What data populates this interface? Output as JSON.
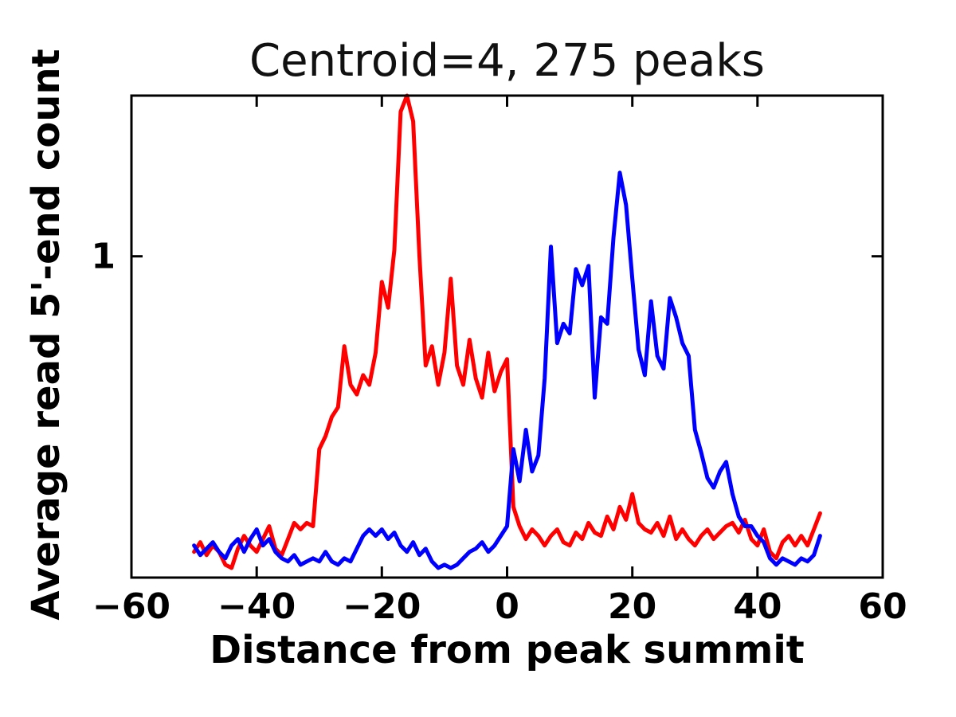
{
  "chart_data": {
    "type": "line",
    "title": "Centroid=4, 275 peaks",
    "xlabel": "Distance from peak summit",
    "ylabel": "Average read 5'-end count",
    "xlim": [
      -60,
      60
    ],
    "ylim": [
      0,
      1.5
    ],
    "xticks": [
      -60,
      -40,
      -20,
      0,
      20,
      40,
      60
    ],
    "yticks": [
      1
    ],
    "grid": false,
    "legend_position": "none",
    "x": [
      -50,
      -49,
      -48,
      -47,
      -46,
      -45,
      -44,
      -43,
      -42,
      -41,
      -40,
      -39,
      -38,
      -37,
      -36,
      -35,
      -34,
      -33,
      -32,
      -31,
      -30,
      -29,
      -28,
      -27,
      -26,
      -25,
      -24,
      -23,
      -22,
      -21,
      -20,
      -19,
      -18,
      -17,
      -16,
      -15,
      -14,
      -13,
      -12,
      -11,
      -10,
      -9,
      -8,
      -7,
      -6,
      -5,
      -4,
      -3,
      -2,
      -1,
      0,
      1,
      2,
      3,
      4,
      5,
      6,
      7,
      8,
      9,
      10,
      11,
      12,
      13,
      14,
      15,
      16,
      17,
      18,
      19,
      20,
      21,
      22,
      23,
      24,
      25,
      26,
      27,
      28,
      29,
      30,
      31,
      32,
      33,
      34,
      35,
      36,
      37,
      38,
      39,
      40,
      41,
      42,
      43,
      44,
      45,
      46,
      47,
      48,
      49,
      50
    ],
    "series": [
      {
        "name": "red",
        "color": "#ff0000",
        "values": [
          0.08,
          0.11,
          0.07,
          0.1,
          0.08,
          0.04,
          0.03,
          0.09,
          0.13,
          0.1,
          0.08,
          0.12,
          0.16,
          0.09,
          0.07,
          0.12,
          0.17,
          0.15,
          0.17,
          0.16,
          0.4,
          0.44,
          0.5,
          0.53,
          0.72,
          0.6,
          0.57,
          0.63,
          0.6,
          0.7,
          0.92,
          0.84,
          1.02,
          1.45,
          1.5,
          1.42,
          1.0,
          0.66,
          0.72,
          0.6,
          0.7,
          0.93,
          0.66,
          0.6,
          0.74,
          0.62,
          0.56,
          0.7,
          0.58,
          0.64,
          0.68,
          0.22,
          0.16,
          0.12,
          0.15,
          0.13,
          0.1,
          0.13,
          0.15,
          0.11,
          0.1,
          0.14,
          0.12,
          0.17,
          0.14,
          0.13,
          0.19,
          0.15,
          0.22,
          0.18,
          0.26,
          0.17,
          0.15,
          0.14,
          0.17,
          0.13,
          0.19,
          0.12,
          0.15,
          0.12,
          0.1,
          0.13,
          0.15,
          0.12,
          0.14,
          0.16,
          0.17,
          0.14,
          0.18,
          0.12,
          0.1,
          0.15,
          0.08,
          0.06,
          0.11,
          0.13,
          0.1,
          0.13,
          0.1,
          0.15,
          0.2
        ]
      },
      {
        "name": "blue",
        "color": "#0000ff",
        "values": [
          0.1,
          0.07,
          0.09,
          0.11,
          0.08,
          0.06,
          0.1,
          0.12,
          0.08,
          0.12,
          0.15,
          0.1,
          0.12,
          0.08,
          0.06,
          0.05,
          0.07,
          0.04,
          0.05,
          0.06,
          0.05,
          0.08,
          0.05,
          0.04,
          0.06,
          0.05,
          0.09,
          0.13,
          0.15,
          0.13,
          0.15,
          0.12,
          0.14,
          0.1,
          0.08,
          0.11,
          0.07,
          0.09,
          0.05,
          0.03,
          0.04,
          0.03,
          0.04,
          0.06,
          0.08,
          0.09,
          0.11,
          0.08,
          0.1,
          0.13,
          0.16,
          0.4,
          0.3,
          0.46,
          0.33,
          0.38,
          0.62,
          1.03,
          0.73,
          0.79,
          0.76,
          0.96,
          0.91,
          0.97,
          0.56,
          0.81,
          0.79,
          1.06,
          1.26,
          1.16,
          0.93,
          0.71,
          0.63,
          0.86,
          0.69,
          0.65,
          0.87,
          0.81,
          0.73,
          0.69,
          0.46,
          0.39,
          0.31,
          0.28,
          0.33,
          0.36,
          0.26,
          0.19,
          0.16,
          0.16,
          0.13,
          0.11,
          0.06,
          0.04,
          0.06,
          0.05,
          0.04,
          0.06,
          0.05,
          0.07,
          0.13
        ]
      }
    ]
  }
}
